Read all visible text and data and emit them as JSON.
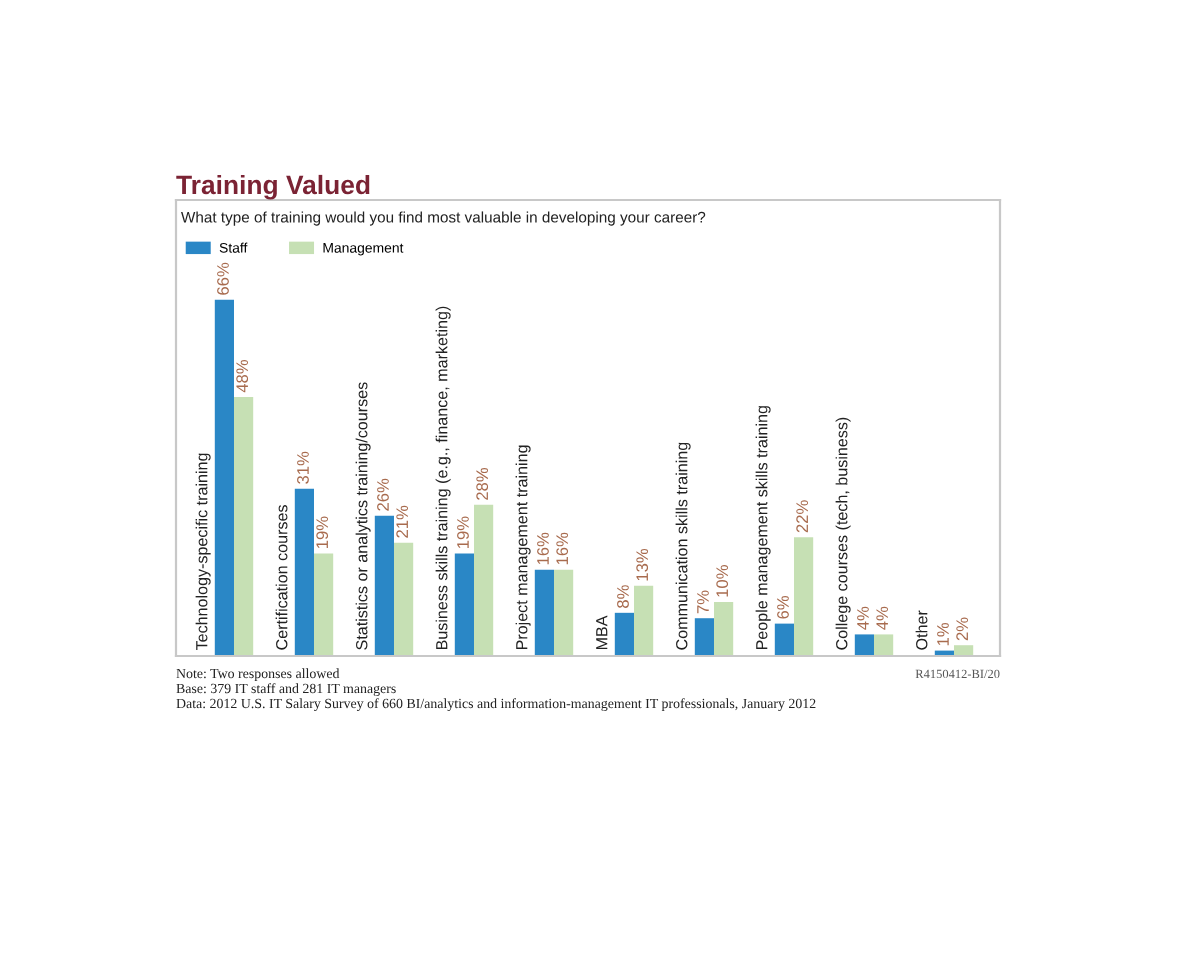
{
  "chart_data": {
    "type": "bar",
    "title": "Training Valued",
    "subtitle": "What type of training would you find most valuable in developing your career?",
    "categories": [
      "Technology-specific training",
      "Certification courses",
      "Statistics or analytics training/courses",
      "Business skills training (e.g., finance, marketing)",
      "Project management training",
      "MBA",
      "Communication skills training",
      "People management skills training",
      "College courses (tech, business)",
      "Other"
    ],
    "series": [
      {
        "name": "Staff",
        "color": "#2a87c6",
        "values": [
          66,
          31,
          26,
          19,
          16,
          8,
          7,
          6,
          4,
          1
        ],
        "value_labels": [
          "66%",
          "31%",
          "26%",
          "19%",
          "16%",
          "8%",
          "7%",
          "6%",
          "4%",
          "1%"
        ]
      },
      {
        "name": "Management",
        "color": "#c6e0b4",
        "values": [
          48,
          19,
          21,
          28,
          16,
          13,
          10,
          22,
          4,
          2
        ],
        "value_labels": [
          "48%",
          "19%",
          "21%",
          "28%",
          "16%",
          "13%",
          "10%",
          "22%",
          "4%",
          "2%"
        ]
      }
    ],
    "legend": "top left",
    "annotations": [
      "Note: Two responses allowed",
      "Base: 379 IT staff and 281 IT managers",
      "Data: 2012 U.S. IT Salary Survey of 660 BI/analytics and information-management IT professionals, January 2012",
      "R4150412-BI/20"
    ]
  }
}
